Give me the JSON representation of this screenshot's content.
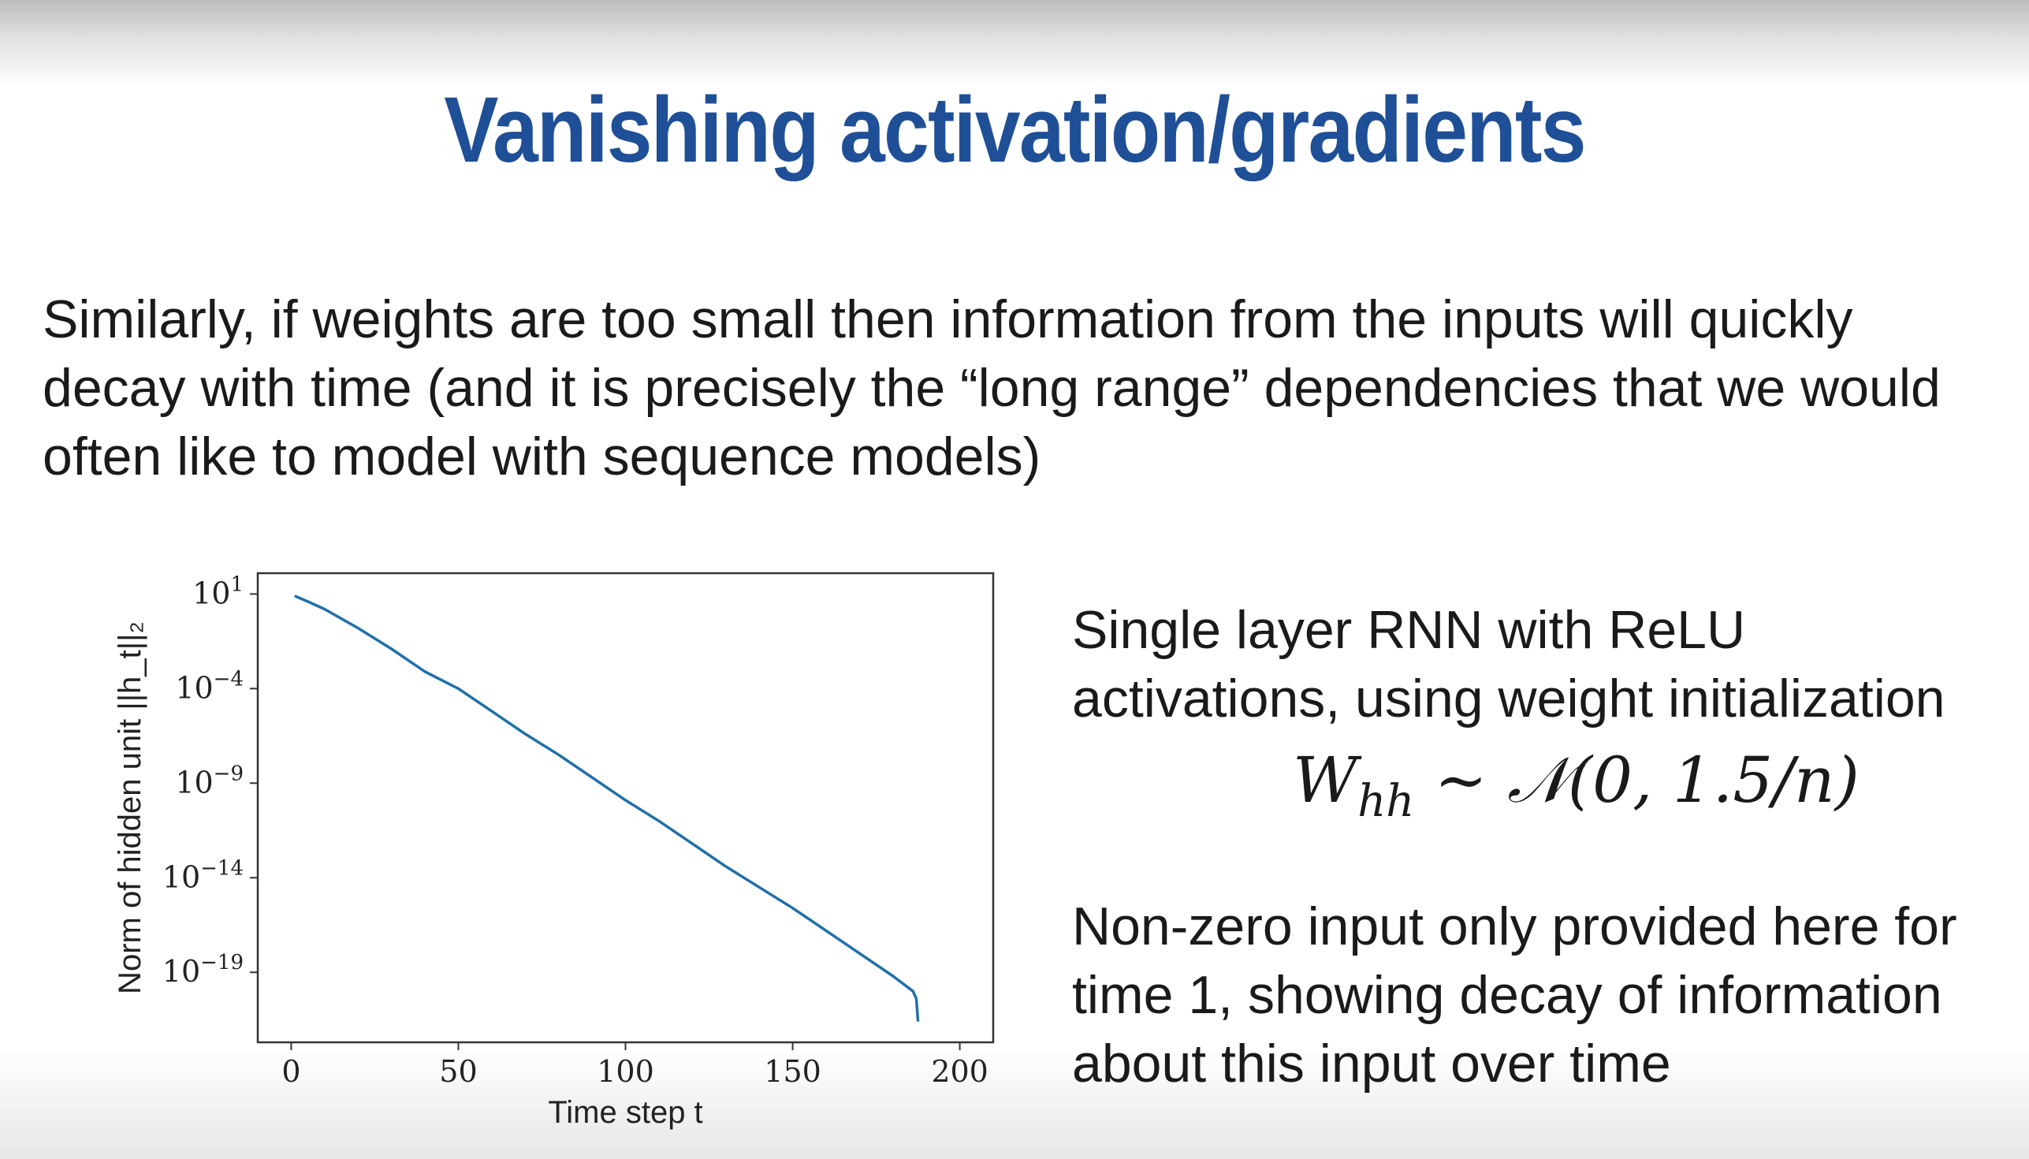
{
  "slide": {
    "title": "Vanishing activation/gradients",
    "intro_lines": [
      "Similarly, if weights are too small then information from the inputs will quickly",
      "decay with time (and it is precisely the “long range” dependencies that we would",
      "often like to model with sequence models)"
    ],
    "description_lines": [
      "Single layer RNN with ReLU",
      "activations, using weight initialization"
    ],
    "formula": {
      "lhs": "W",
      "lhs_sub": "hh",
      "rhs": "∼ 𝒩(0, 1.5/n)"
    },
    "note_lines": [
      "Non-zero input only provided here for",
      "time 1, showing decay of information",
      "about this input over time"
    ]
  },
  "chart_data": {
    "type": "line",
    "xlabel": "Time step t",
    "ylabel": "Norm of hidden unit ||h_t||₂",
    "y_scale": "log",
    "x_ticks": [
      "0",
      "50",
      "100",
      "150",
      "200"
    ],
    "y_ticks": [
      {
        "base": "10",
        "exp": "1"
      },
      {
        "base": "10",
        "exp": "−4"
      },
      {
        "base": "10",
        "exp": "−9"
      },
      {
        "base": "10",
        "exp": "−14"
      },
      {
        "base": "10",
        "exp": "−19"
      }
    ],
    "xlim": [
      -10,
      210
    ],
    "ylim_log10": [
      -22.7,
      2.1
    ],
    "series": [
      {
        "color": "#1f6fa8",
        "x": [
          1,
          5,
          10,
          20,
          30,
          40,
          50,
          60,
          70,
          80,
          90,
          100,
          110,
          120,
          130,
          140,
          150,
          160,
          170,
          180,
          186,
          187,
          187.5
        ],
        "log10_y": [
          0.9,
          0.6,
          0.2,
          -0.8,
          -1.9,
          -3.1,
          -4.0,
          -5.2,
          -6.4,
          -7.5,
          -8.7,
          -9.9,
          -11.0,
          -12.2,
          -13.4,
          -14.5,
          -15.6,
          -16.8,
          -18.0,
          -19.2,
          -20.0,
          -20.4,
          -21.6
        ]
      }
    ]
  }
}
